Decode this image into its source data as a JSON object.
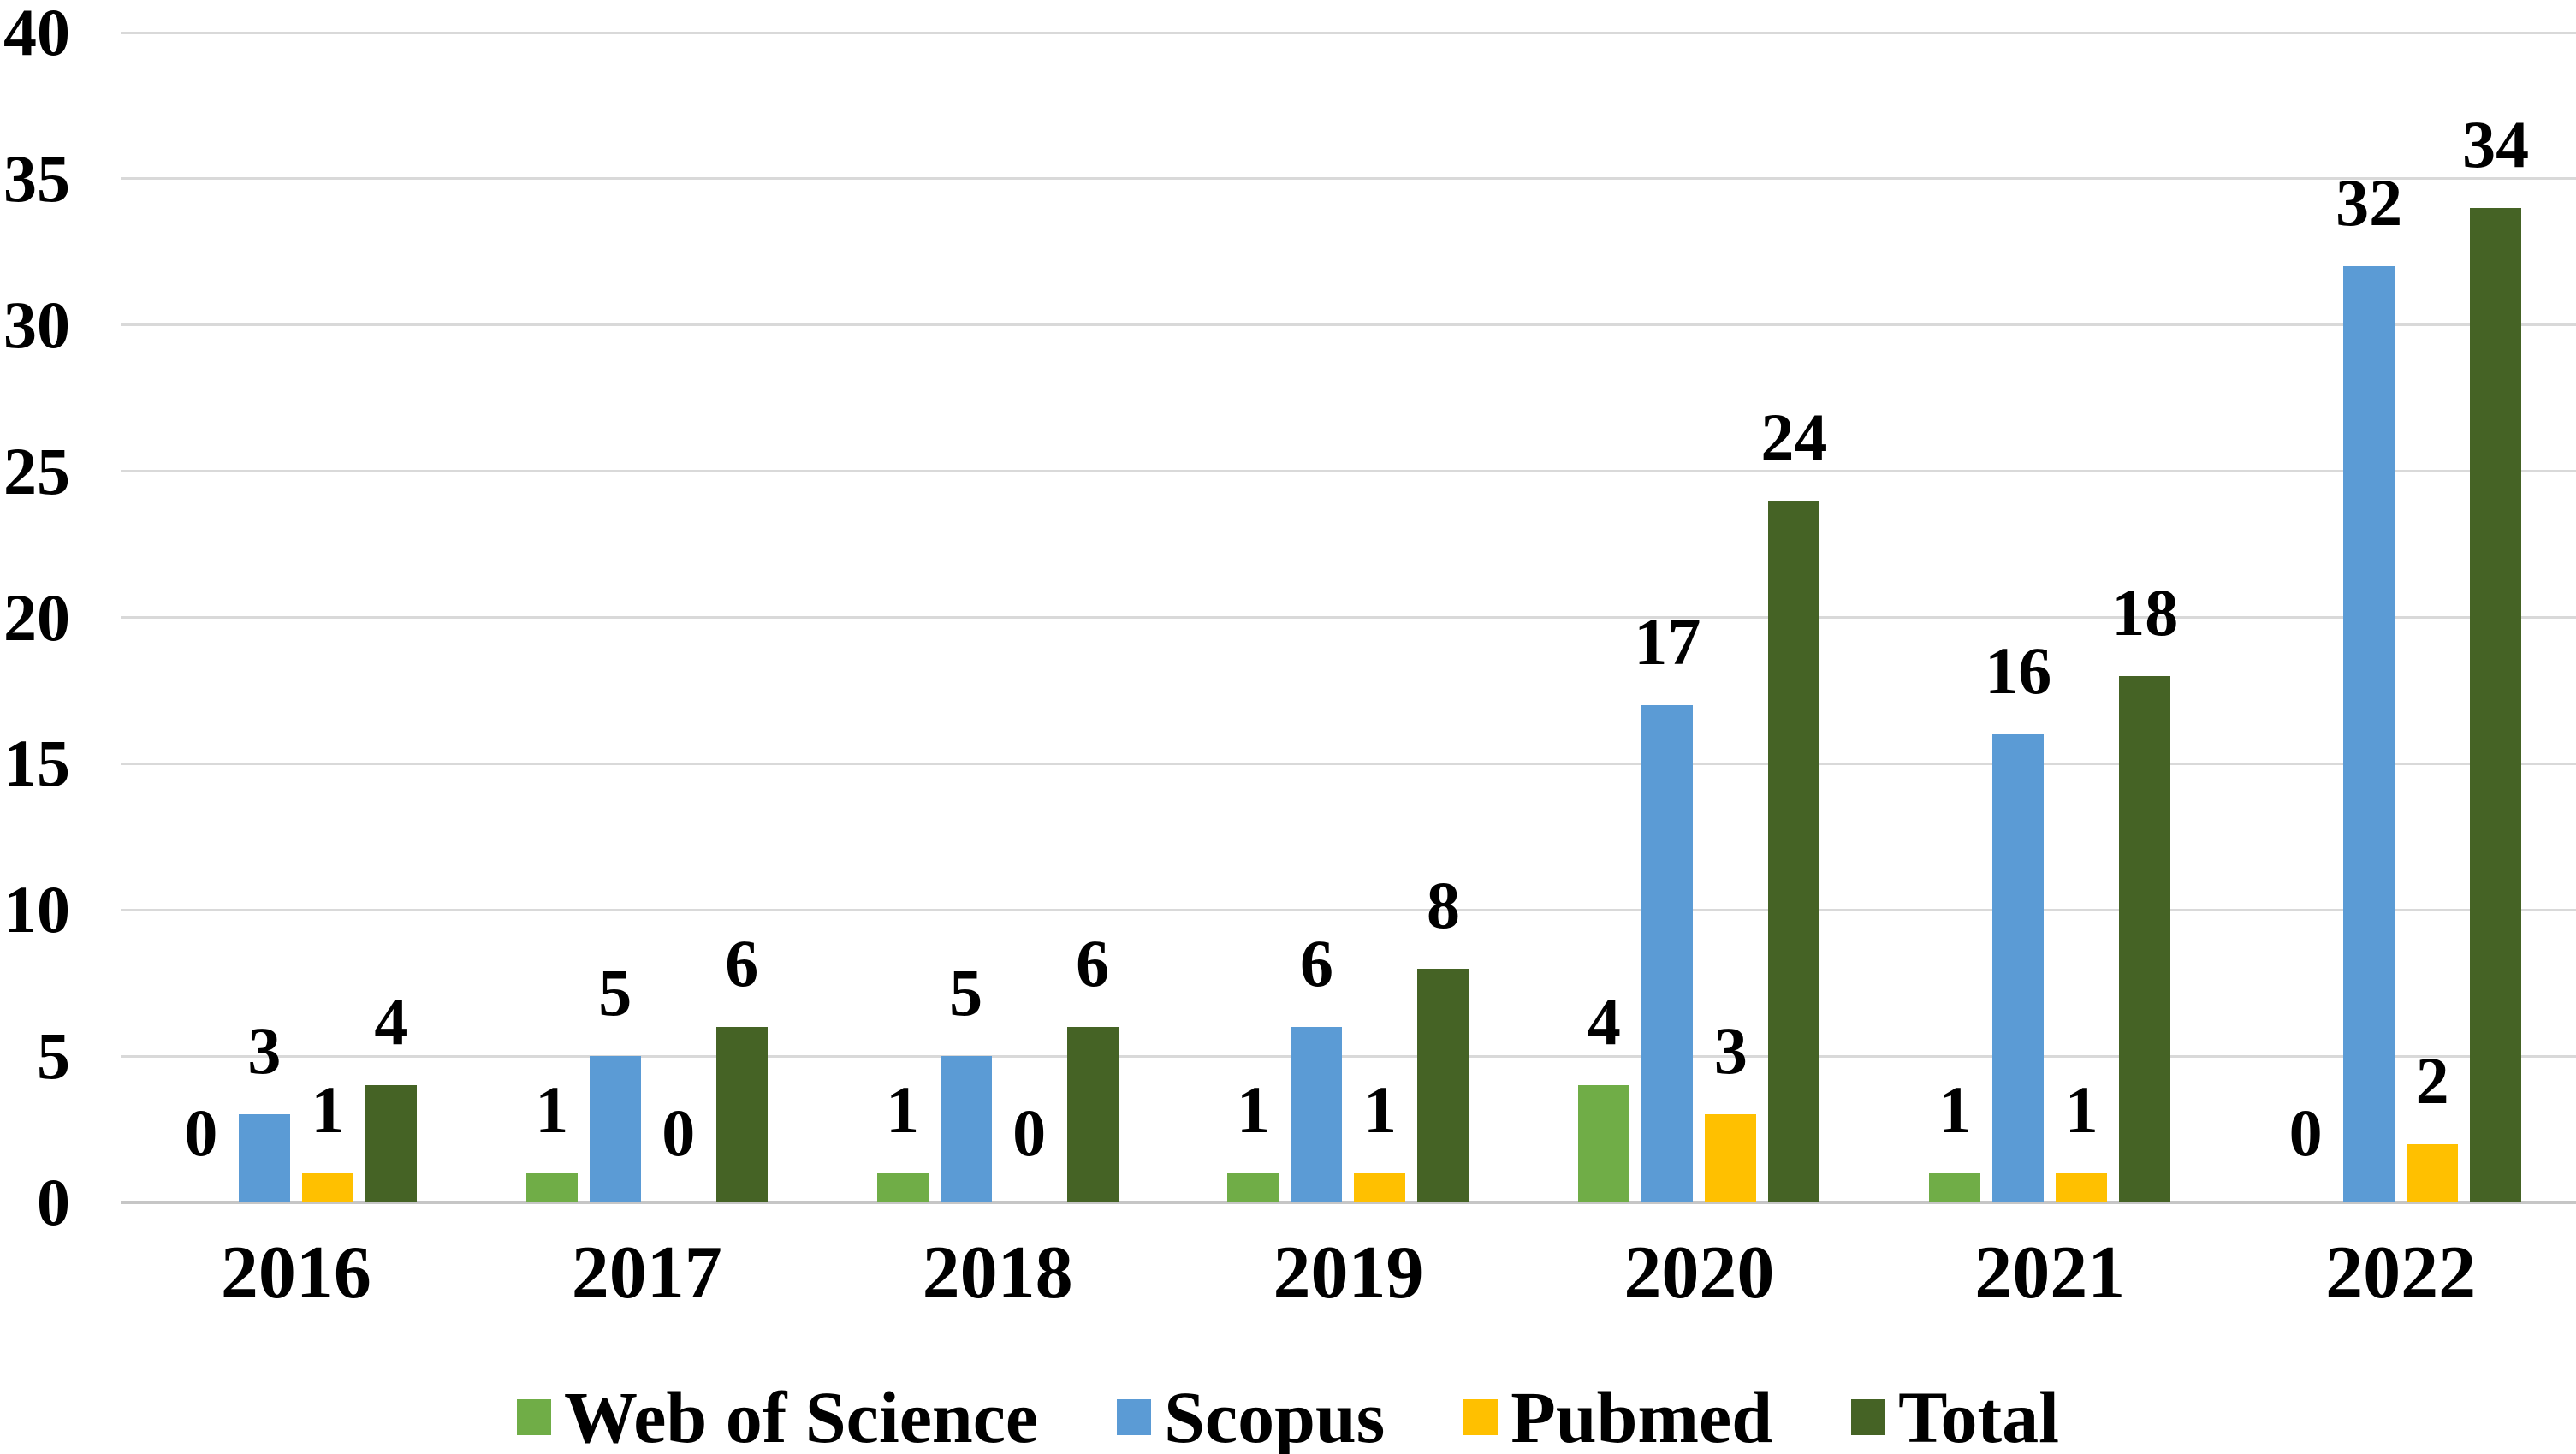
{
  "chart_data": {
    "type": "bar",
    "title": "",
    "categories": [
      "2016",
      "2017",
      "2018",
      "2019",
      "2020",
      "2021",
      "2022"
    ],
    "series": [
      {
        "name": "Web of Science",
        "color": "#70AD47",
        "values": [
          0,
          1,
          1,
          1,
          4,
          1,
          0
        ]
      },
      {
        "name": "Scopus",
        "color": "#5B9BD5",
        "values": [
          3,
          5,
          5,
          6,
          17,
          16,
          32
        ]
      },
      {
        "name": "Pubmed",
        "color": "#FFC000",
        "values": [
          1,
          0,
          0,
          1,
          3,
          1,
          2
        ]
      },
      {
        "name": "Total",
        "color": "#456325",
        "values": [
          4,
          6,
          6,
          8,
          24,
          18,
          34
        ]
      }
    ],
    "xlabel": "",
    "ylabel": "",
    "ylim": [
      0,
      40
    ],
    "y_tick_step": 5,
    "y_tick_labels": [
      "0",
      "5",
      "10",
      "15",
      "20",
      "25",
      "30",
      "35",
      "40"
    ],
    "data_labels": true,
    "grid": true,
    "legend_position": "bottom",
    "styles": {
      "grid_color": "#D9D9D9",
      "axis_color": "#C6C6C6",
      "text_color": "#000000",
      "background": "#FFFFFF"
    }
  }
}
